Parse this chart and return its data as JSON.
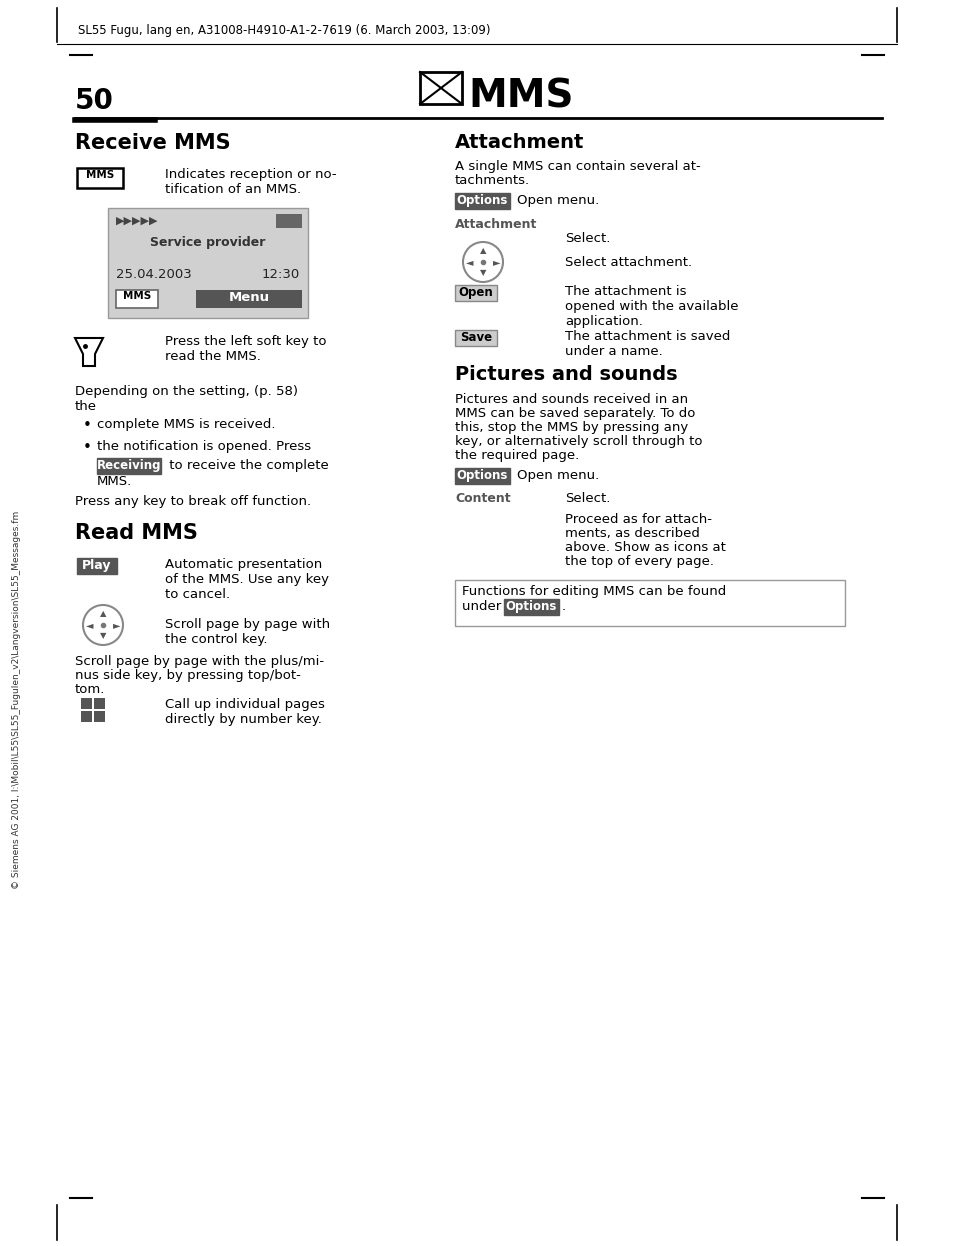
{
  "header_text": "SL55 Fugu, lang en, A31008-H4910-A1-2-7619 (6. March 2003, 13:09)",
  "page_number": "50",
  "page_title": "MMS",
  "sidebar_text": "© Siemens AG 2001, I:\\Mobil\\L55\\SL55_Fugulen_v2\\Langversion\\SL55_Messages.fm",
  "left_col": {
    "section1_title": "Receive MMS",
    "mms_icon_label": "MMS",
    "mms_icon_text": "Indicates reception or no-\ntification of an MMS.",
    "phone_screen": {
      "date": "25.04.2003",
      "time": "12:30",
      "provider": "Service provider",
      "softkey_left": "MMS",
      "softkey_right": "Menu"
    },
    "arrow_text": "Press the left soft key to\nread the MMS.",
    "para1_line1": "Depending on the setting, (p. 58)",
    "para1_line2": "the",
    "bullet1": "complete MMS is received.",
    "bullet2_pre": "the notification is opened. Press",
    "bullet2_key": "Receiving",
    "bullet2_post": " to receive the complete",
    "bullet2_end": "MMS.",
    "para2": "Press any key to break off function.",
    "section2_title": "Read MMS",
    "play_key": "Play",
    "play_text": "Automatic presentation\nof the MMS. Use any key\nto cancel.",
    "control_text": "Scroll page by page with\nthe control key.",
    "para3_line1": "Scroll page by page with the plus/mi-",
    "para3_line2": "nus side key, by pressing top/bot-",
    "para3_line3": "tom.",
    "grid_text": "Call up individual pages\ndirectly by number key."
  },
  "right_col": {
    "section1_title": "Attachment",
    "para1_line1": "A single MMS can contain several at-",
    "para1_line2": "tachments.",
    "options_key1": "Options",
    "options_text1": "Open menu.",
    "attach_label": "Attachment",
    "attach_text": "Select.",
    "select_text": "Select attachment.",
    "open_key": "Open",
    "open_text": "The attachment is\nopened with the available\napplication.",
    "save_key": "Save",
    "save_text": "The attachment is saved\nunder a name.",
    "section2_title": "Pictures and sounds",
    "para2_line1": "Pictures and sounds received in an",
    "para2_line2": "MMS can be saved separately. To do",
    "para2_line3": "this, stop the MMS by pressing any",
    "para2_line4": "key, or alternatively scroll through to",
    "para2_line5": "the required page.",
    "options_key2": "Options",
    "options_text2": "Open menu.",
    "content_label": "Content",
    "content_text": "Select.",
    "content_para_line1": "Proceed as for attach-",
    "content_para_line2": "ments, as described",
    "content_para_line3": "above. Show as icons at",
    "content_para_line4": "the top of every page.",
    "footer_line1": "Functions for editing MMS can be found",
    "footer_line2_pre": "under ",
    "footer_key": "Options",
    "footer_end": "."
  },
  "bg_color": "#ffffff",
  "text_color": "#000000"
}
